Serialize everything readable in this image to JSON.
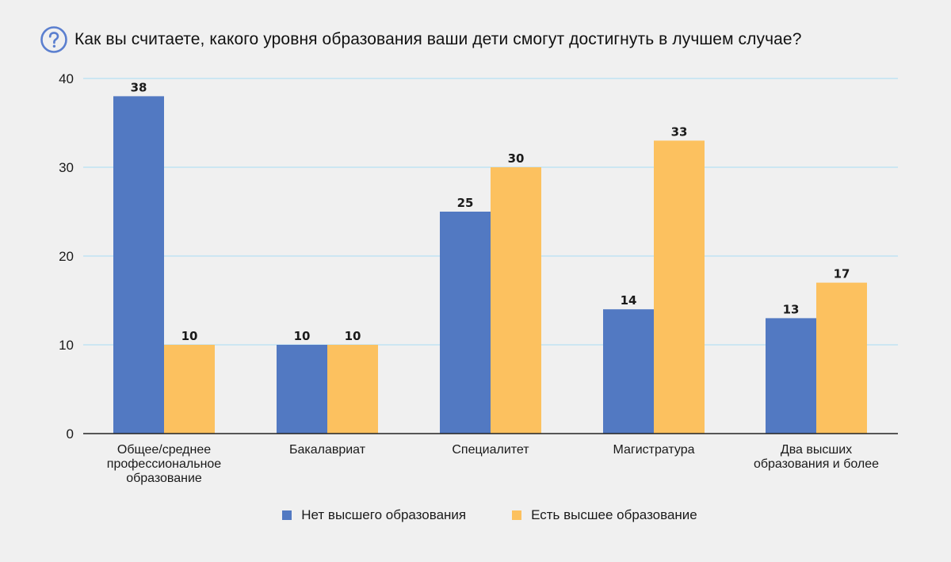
{
  "header": {
    "icon": "question-circle-icon",
    "icon_color": "#5b7fcf",
    "title": "Как вы считаете, какого уровня образования ваши дети смогут достигнуть в лучшем случае?"
  },
  "colors": {
    "background": "#f0f0f0",
    "gridline": "#bfe3f2",
    "axis": "#222222",
    "series_1": "#5279c2",
    "series_2": "#fcc15f"
  },
  "chart_data": {
    "type": "bar",
    "title": "Как вы считаете, какого уровня образования ваши дети смогут достигнуть в лучшем случае?",
    "categories": [
      [
        "Общее/среднее",
        "профессиональное",
        "образование"
      ],
      [
        "Бакалавриат"
      ],
      [
        "Специалитет"
      ],
      [
        "Магистратура"
      ],
      [
        "Два высших",
        "образования и более"
      ]
    ],
    "series": [
      {
        "name": "Нет высшего образования",
        "values": [
          38,
          10,
          25,
          14,
          13
        ]
      },
      {
        "name": "Есть высшее образование",
        "values": [
          10,
          10,
          30,
          33,
          17
        ]
      }
    ],
    "ylim": [
      0,
      40
    ],
    "yticks": [
      0,
      10,
      20,
      30,
      40
    ],
    "xlabel": "",
    "ylabel": "",
    "grid": true,
    "legend_position": "bottom-center",
    "data_labels": true
  }
}
